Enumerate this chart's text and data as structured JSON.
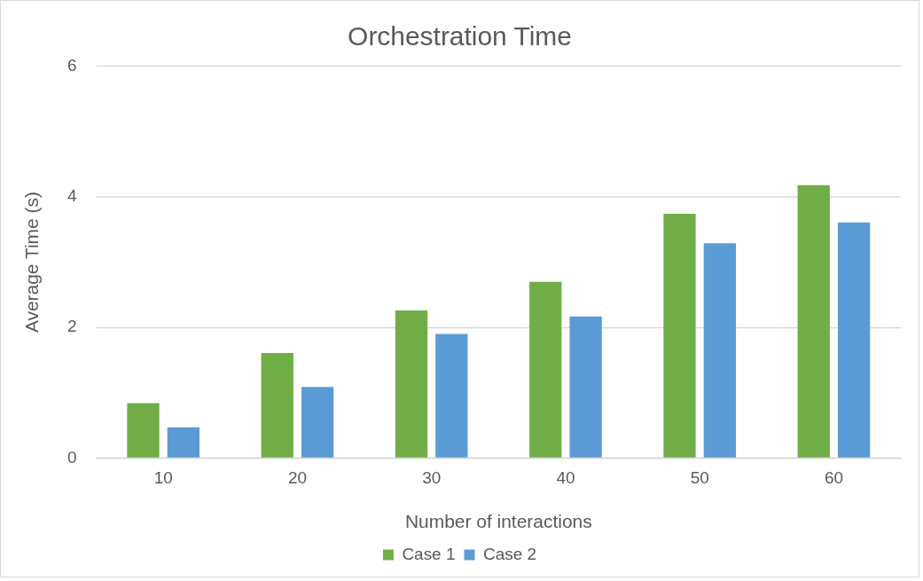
{
  "chart_data": {
    "type": "bar",
    "title": "Orchestration Time",
    "xlabel": "Number of interactions",
    "ylabel": "Average Time (s)",
    "categories": [
      "10",
      "20",
      "30",
      "40",
      "50",
      "60"
    ],
    "series": [
      {
        "name": "Case 1",
        "color": "#70ad47",
        "values": [
          0.84,
          1.61,
          2.26,
          2.7,
          3.74,
          4.18
        ]
      },
      {
        "name": "Case 2",
        "color": "#5b9bd5",
        "values": [
          0.47,
          1.09,
          1.9,
          2.17,
          3.29,
          3.61
        ]
      }
    ],
    "ylim": [
      0,
      6
    ],
    "yticks": [
      0,
      2,
      4,
      6
    ],
    "grid": "y",
    "legend": "bottom"
  }
}
